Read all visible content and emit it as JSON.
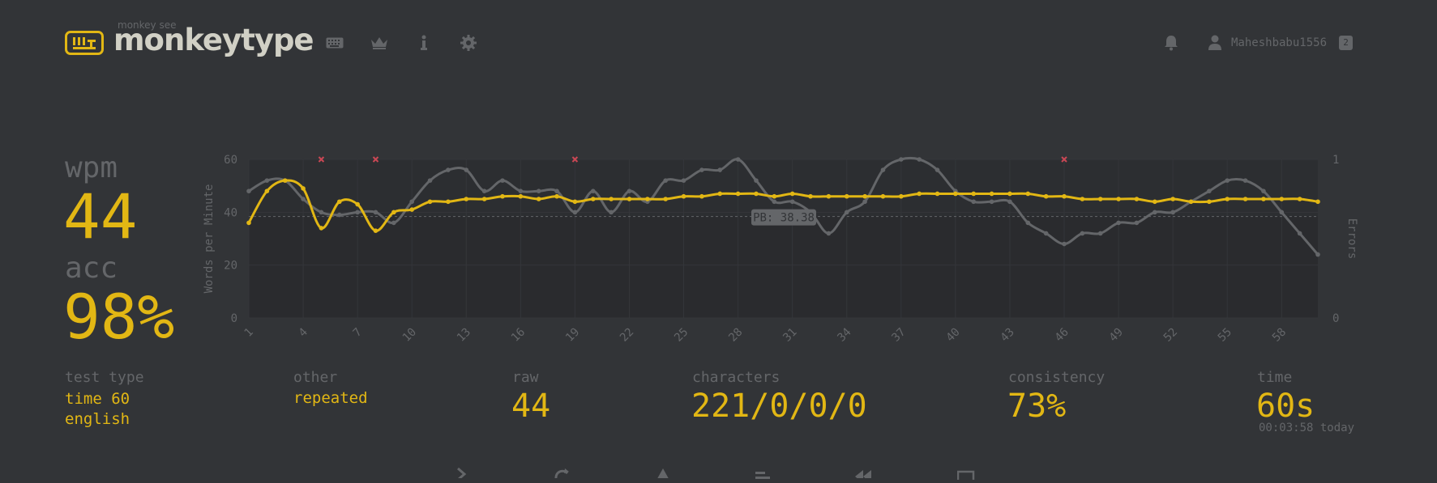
{
  "header": {
    "logo_subtitle": "monkey see",
    "logo_text": "monkeytype",
    "nav_icons": [
      "keyboard-icon",
      "crown-icon",
      "info-icon",
      "gear-icon"
    ],
    "user": {
      "name": "Maheshbabu1556",
      "badge": "2"
    }
  },
  "stats": {
    "wpm_label": "wpm",
    "wpm": "44",
    "acc_label": "acc",
    "acc": "98%"
  },
  "details": {
    "test_type_label": "test type",
    "test_type_mode": "time 60",
    "test_type_language": "english",
    "other_label": "other",
    "other_value": "repeated",
    "raw_label": "raw",
    "raw": "44",
    "characters_label": "characters",
    "characters": "221/0/0/0",
    "consistency_label": "consistency",
    "consistency": "73%",
    "time_label": "time",
    "time": "60s",
    "time_sub": "00:03:58 today"
  },
  "colors": {
    "background": "#323437",
    "accent": "#e2b714",
    "sub": "#646669",
    "text": "#d1d0c5",
    "error": "#ca4754"
  },
  "chart_data": {
    "type": "line",
    "ylabel": "Words per Minute",
    "y2label": "Errors",
    "ylim": [
      0,
      60
    ],
    "y2lim": [
      0,
      1
    ],
    "yticks": [
      "0",
      "20",
      "40",
      "60"
    ],
    "y2ticks": [
      "0",
      "1"
    ],
    "xtick_labels": [
      "1",
      "4",
      "7",
      "10",
      "13",
      "16",
      "19",
      "22",
      "25",
      "28",
      "31",
      "34",
      "37",
      "40",
      "43",
      "46",
      "49",
      "52",
      "55",
      "58"
    ],
    "annotation": "PB: 38.38",
    "pb": 38.38,
    "x": [
      1,
      2,
      3,
      4,
      5,
      6,
      7,
      8,
      9,
      10,
      11,
      12,
      13,
      14,
      15,
      16,
      17,
      18,
      19,
      20,
      21,
      22,
      23,
      24,
      25,
      26,
      27,
      28,
      29,
      30,
      31,
      32,
      33,
      34,
      35,
      36,
      37,
      38,
      39,
      40,
      41,
      42,
      43,
      44,
      45,
      46,
      47,
      48,
      49,
      50,
      51,
      52,
      53,
      54,
      55,
      56,
      57,
      58,
      59,
      60
    ],
    "series": [
      {
        "name": "wpm",
        "color": "#e2b714",
        "values": [
          36,
          48,
          52,
          49,
          34,
          44,
          43,
          33,
          40,
          41,
          44,
          44,
          45,
          45,
          46,
          46,
          45,
          46,
          44,
          45,
          45,
          45,
          45,
          45,
          46,
          46,
          47,
          47,
          47,
          46,
          47,
          46,
          46,
          46,
          46,
          46,
          46,
          47,
          47,
          47,
          47,
          47,
          47,
          47,
          46,
          46,
          45,
          45,
          45,
          45,
          44,
          45,
          44,
          44,
          45,
          45,
          45,
          45,
          45,
          44
        ]
      },
      {
        "name": "raw",
        "color": "#646669",
        "values": [
          48,
          52,
          52,
          45,
          40,
          39,
          40,
          40,
          36,
          44,
          52,
          56,
          56,
          48,
          52,
          48,
          48,
          48,
          40,
          48,
          40,
          48,
          44,
          52,
          52,
          56,
          56,
          60,
          52,
          44,
          44,
          40,
          32,
          40,
          44,
          56,
          60,
          60,
          56,
          48,
          44,
          44,
          44,
          36,
          32,
          28,
          32,
          32,
          36,
          36,
          40,
          40,
          44,
          48,
          52,
          52,
          48,
          40,
          32,
          24
        ]
      },
      {
        "name": "errors",
        "color": "#ca4754",
        "type": "scatter",
        "x": [
          5,
          8,
          19,
          46
        ],
        "values": [
          1,
          1,
          1,
          1
        ]
      }
    ]
  }
}
